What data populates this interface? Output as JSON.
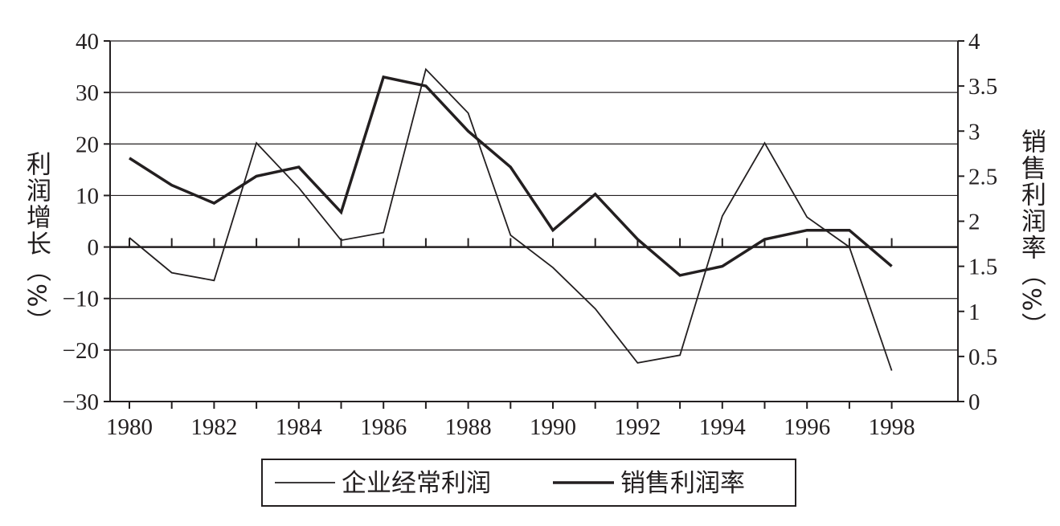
{
  "chart_data": {
    "type": "line",
    "x": [
      1980,
      1981,
      1982,
      1983,
      1984,
      1985,
      1986,
      1987,
      1988,
      1989,
      1990,
      1991,
      1992,
      1993,
      1994,
      1995,
      1996,
      1997,
      1998
    ],
    "x_ticks": [
      "1980",
      "1982",
      "1984",
      "1986",
      "1988",
      "1990",
      "1992",
      "1994",
      "1996",
      "1998"
    ],
    "ylabel_left": "利润增长（%）",
    "ylabel_right": "销售利润率（%）",
    "ylim_left": [
      -30,
      40
    ],
    "ylim_right": [
      0,
      4
    ],
    "y_ticks_left": [
      "40",
      "30",
      "20",
      "10",
      "0",
      "−10",
      "−20",
      "−30"
    ],
    "y_ticks_right": [
      "4",
      "3.5",
      "3",
      "2.5",
      "2",
      "1.5",
      "1",
      "0.5",
      "0"
    ],
    "grid": true,
    "legend_position": "bottom-center",
    "series": [
      {
        "name": "企业经常利润",
        "axis": "left",
        "line_weight": "thin",
        "values": [
          1.8,
          -5,
          -6.5,
          20.2,
          11.5,
          1.3,
          2.8,
          34.5,
          26,
          2.3,
          -4,
          -12,
          -22.5,
          -21,
          6,
          20.2,
          5.8,
          0,
          -24
        ]
      },
      {
        "name": "销售利润率",
        "axis": "right",
        "line_weight": "thick",
        "values": [
          2.7,
          2.4,
          2.2,
          2.5,
          2.6,
          2.1,
          3.6,
          3.5,
          3.0,
          2.6,
          1.9,
          2.3,
          1.8,
          1.4,
          1.5,
          1.8,
          1.9,
          1.9,
          1.5
        ]
      }
    ]
  },
  "colors": {
    "ink": "#231f20",
    "background": "#ffffff"
  }
}
